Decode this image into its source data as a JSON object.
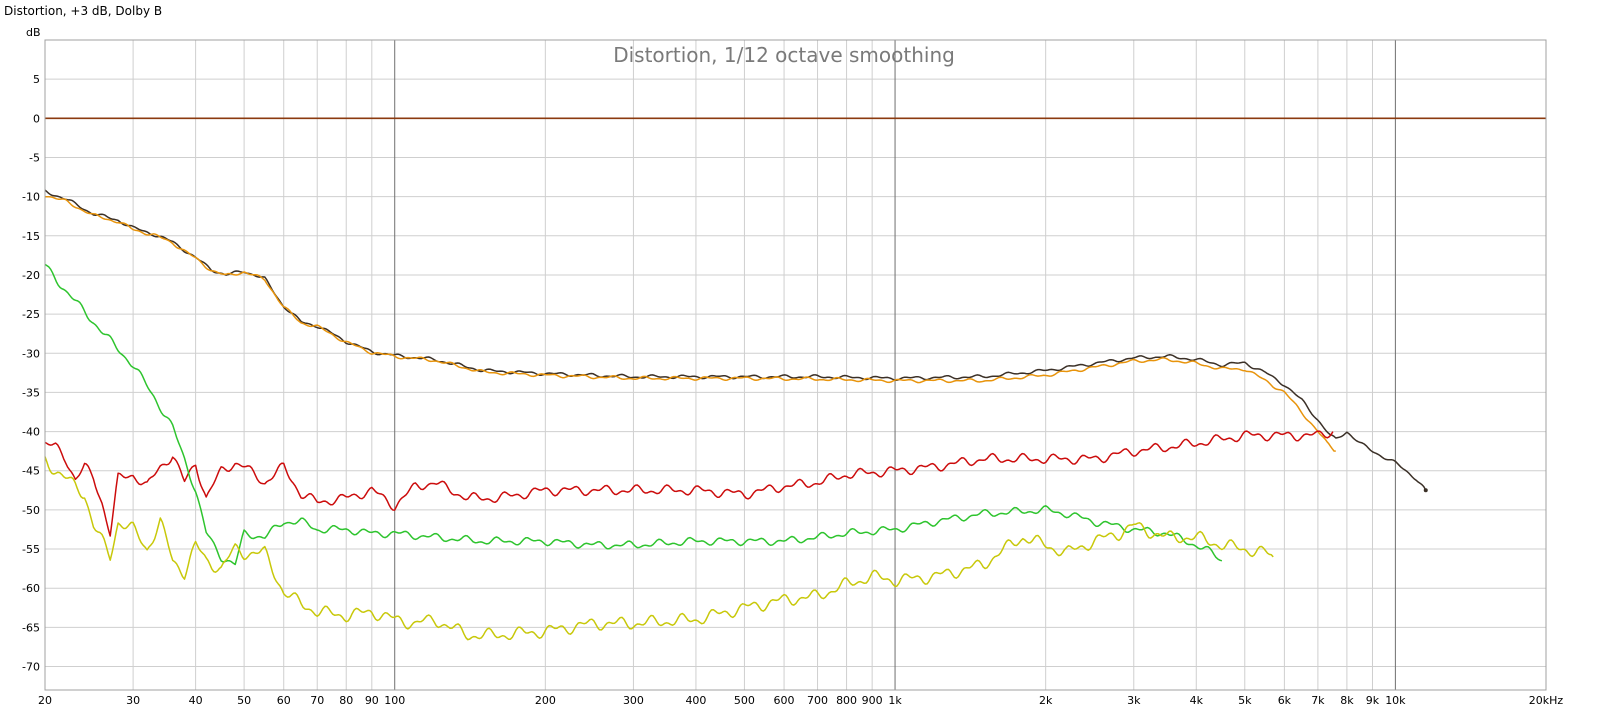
{
  "window_title": "Distortion, +3 dB, Dolby B",
  "chart_data": {
    "type": "line",
    "title": "Distortion, 1/12 octave smoothing",
    "ylabel": "dB",
    "xlabel": "",
    "x_scale": "log",
    "xlim": [
      20,
      20000
    ],
    "ylim": [
      -73,
      10
    ],
    "grid": true,
    "legend": "none",
    "x_ticks": [
      {
        "value": 20,
        "label": "20"
      },
      {
        "value": 30,
        "label": "30"
      },
      {
        "value": 40,
        "label": "40"
      },
      {
        "value": 50,
        "label": "50"
      },
      {
        "value": 60,
        "label": "60"
      },
      {
        "value": 70,
        "label": "70"
      },
      {
        "value": 80,
        "label": "80"
      },
      {
        "value": 90,
        "label": "90"
      },
      {
        "value": 100,
        "label": "100"
      },
      {
        "value": 200,
        "label": "200"
      },
      {
        "value": 300,
        "label": "300"
      },
      {
        "value": 400,
        "label": "400"
      },
      {
        "value": 500,
        "label": "500"
      },
      {
        "value": 600,
        "label": "600"
      },
      {
        "value": 700,
        "label": "700"
      },
      {
        "value": 800,
        "label": "800"
      },
      {
        "value": 900,
        "label": "900"
      },
      {
        "value": 1000,
        "label": "1k"
      },
      {
        "value": 2000,
        "label": "2k"
      },
      {
        "value": 3000,
        "label": "3k"
      },
      {
        "value": 4000,
        "label": "4k"
      },
      {
        "value": 5000,
        "label": "5k"
      },
      {
        "value": 6000,
        "label": "6k"
      },
      {
        "value": 7000,
        "label": "7k"
      },
      {
        "value": 8000,
        "label": "8k"
      },
      {
        "value": 9000,
        "label": "9k"
      },
      {
        "value": 10000,
        "label": "10k"
      },
      {
        "value": 20000,
        "label": "20kHz"
      }
    ],
    "y_ticks": [
      {
        "value": 5,
        "label": "5"
      },
      {
        "value": 0,
        "label": "0"
      },
      {
        "value": -5,
        "label": "-5"
      },
      {
        "value": -10,
        "label": "-10"
      },
      {
        "value": -15,
        "label": "-15"
      },
      {
        "value": -20,
        "label": "-20"
      },
      {
        "value": -25,
        "label": "-25"
      },
      {
        "value": -30,
        "label": "-30"
      },
      {
        "value": -35,
        "label": "-35"
      },
      {
        "value": -40,
        "label": "-40"
      },
      {
        "value": -45,
        "label": "-45"
      },
      {
        "value": -50,
        "label": "-50"
      },
      {
        "value": -55,
        "label": "-55"
      },
      {
        "value": -60,
        "label": "-60"
      },
      {
        "value": -65,
        "label": "-65"
      },
      {
        "value": -70,
        "label": "-70"
      }
    ],
    "series": [
      {
        "color": "#8b3a0f",
        "x": [
          20,
          20000
        ],
        "y": [
          0,
          0
        ]
      },
      {
        "color": "#3b3027",
        "x": [
          20,
          22,
          25,
          28,
          30,
          33,
          36,
          40,
          43,
          46,
          50,
          55,
          60,
          65,
          70,
          75,
          80,
          90,
          100,
          120,
          150,
          200,
          300,
          500,
          700,
          1000,
          1500,
          2000,
          2500,
          3000,
          3500,
          4000,
          4500,
          5000,
          5500,
          6000,
          6500,
          7000,
          7400,
          7600,
          8000,
          8500,
          9000,
          10000,
          11000,
          11500
        ],
        "y": [
          -9.3,
          -10.3,
          -12.2,
          -13,
          -14,
          -14.8,
          -15.8,
          -17.8,
          -19.3,
          -20,
          -19.5,
          -20.5,
          -24,
          -26,
          -26.5,
          -27.5,
          -28.5,
          -29.8,
          -30.3,
          -30.8,
          -32.2,
          -32.6,
          -33.0,
          -33.0,
          -33.0,
          -33.2,
          -33.0,
          -32.2,
          -31.3,
          -30.6,
          -30.4,
          -30.8,
          -31.5,
          -31.2,
          -32.5,
          -34,
          -36,
          -38.5,
          -40.5,
          -41,
          -40,
          -41.5,
          -42.5,
          -44,
          -46,
          -47.5
        ]
      },
      {
        "color": "#e8940c",
        "x": [
          20,
          22,
          25,
          28,
          30,
          33,
          36,
          40,
          43,
          46,
          50,
          55,
          60,
          65,
          70,
          75,
          80,
          90,
          100,
          120,
          150,
          200,
          300,
          500,
          700,
          1000,
          1500,
          2000,
          2500,
          3000,
          3500,
          4000,
          4500,
          5000,
          5500,
          6000,
          6500,
          7000,
          7300,
          7600
        ],
        "y": [
          -9.8,
          -10.6,
          -12.4,
          -13.2,
          -14.2,
          -14.9,
          -15.9,
          -17.9,
          -19.4,
          -20.1,
          -19.6,
          -20.6,
          -24.1,
          -26.1,
          -26.6,
          -27.6,
          -28.6,
          -29.9,
          -30.4,
          -30.9,
          -32.4,
          -32.8,
          -33.2,
          -33.2,
          -33.3,
          -33.5,
          -33.5,
          -32.8,
          -31.8,
          -31.0,
          -30.8,
          -31.3,
          -32.0,
          -32.0,
          -33.5,
          -35,
          -37.5,
          -40,
          -41.5,
          -42.5
        ]
      },
      {
        "color": "#cc0c0c",
        "x": [
          20,
          21,
          22,
          23,
          24,
          25,
          26,
          27,
          28,
          30,
          32,
          34,
          36,
          38,
          40,
          42,
          45,
          48,
          50,
          55,
          60,
          65,
          70,
          80,
          90,
          100,
          110,
          120,
          140,
          160,
          200,
          250,
          300,
          400,
          500,
          600,
          700,
          800,
          1000,
          1200,
          1500,
          2000,
          2500,
          3000,
          3500,
          4000,
          5000,
          6000,
          7000,
          7500
        ],
        "y": [
          -41.5,
          -42,
          -43.5,
          -46,
          -44.5,
          -46,
          -49,
          -53,
          -46,
          -45.5,
          -47,
          -44.5,
          -43,
          -46.5,
          -44,
          -48.5,
          -45,
          -44,
          -44.5,
          -46.5,
          -44.5,
          -48,
          -49,
          -48.5,
          -47.5,
          -49.5,
          -47,
          -46.5,
          -48.5,
          -48.5,
          -47.5,
          -47.5,
          -47.5,
          -47.5,
          -48,
          -47,
          -46.5,
          -45.5,
          -45,
          -44.5,
          -43.5,
          -43.5,
          -43.5,
          -42.5,
          -42,
          -41.5,
          -40.5,
          -40.5,
          -40.5,
          -40
        ]
      },
      {
        "color": "#2ec42e",
        "x": [
          20,
          22,
          25,
          28,
          30,
          33,
          36,
          38,
          40,
          42,
          45,
          48,
          50,
          55,
          60,
          65,
          70,
          80,
          90,
          100,
          120,
          150,
          200,
          250,
          300,
          400,
          500,
          600,
          700,
          800,
          1000,
          1200,
          1500,
          2000,
          2200,
          2500,
          3000,
          3500,
          4000,
          4300,
          4500
        ],
        "y": [
          -18.8,
          -22,
          -26,
          -29.5,
          -31.5,
          -35.5,
          -39.5,
          -43.5,
          -47.5,
          -53,
          -56,
          -57,
          -53,
          -53.5,
          -51.5,
          -51.5,
          -52.5,
          -52.5,
          -53,
          -53,
          -53.5,
          -54,
          -54,
          -54.5,
          -54.5,
          -54,
          -54,
          -54,
          -53.5,
          -53,
          -52.5,
          -51.5,
          -50.5,
          -50,
          -50.5,
          -51.5,
          -52.5,
          -53,
          -54.5,
          -55.5,
          -56.5
        ]
      },
      {
        "color": "#c8c80a",
        "x": [
          20,
          21,
          22,
          23,
          24,
          25,
          26,
          27,
          28,
          30,
          32,
          34,
          36,
          38,
          40,
          42,
          45,
          48,
          50,
          55,
          60,
          65,
          70,
          80,
          90,
          100,
          110,
          120,
          140,
          160,
          200,
          250,
          300,
          400,
          500,
          600,
          700,
          800,
          900,
          1000,
          1200,
          1400,
          1500,
          1700,
          1800,
          2000,
          2200,
          2500,
          2800,
          3000,
          3300,
          3500,
          4000,
          4500,
          5000,
          5500,
          5700
        ],
        "y": [
          -43.5,
          -45,
          -46,
          -47,
          -48,
          -52,
          -54,
          -56,
          -51.5,
          -52.5,
          -55,
          -51.5,
          -56.5,
          -58,
          -54.5,
          -56.5,
          -57.5,
          -55,
          -55.5,
          -55.5,
          -60.5,
          -62,
          -63,
          -63.5,
          -63,
          -64,
          -64.5,
          -64,
          -66,
          -66,
          -65.5,
          -64.5,
          -64.5,
          -64,
          -62.5,
          -61.5,
          -61,
          -59.5,
          -58.5,
          -59,
          -58.5,
          -57.5,
          -57,
          -54.5,
          -53.5,
          -54.5,
          -55.5,
          -54,
          -53,
          -52,
          -53,
          -53.5,
          -53.5,
          -54.5,
          -55,
          -55.5,
          -56
        ]
      }
    ]
  }
}
